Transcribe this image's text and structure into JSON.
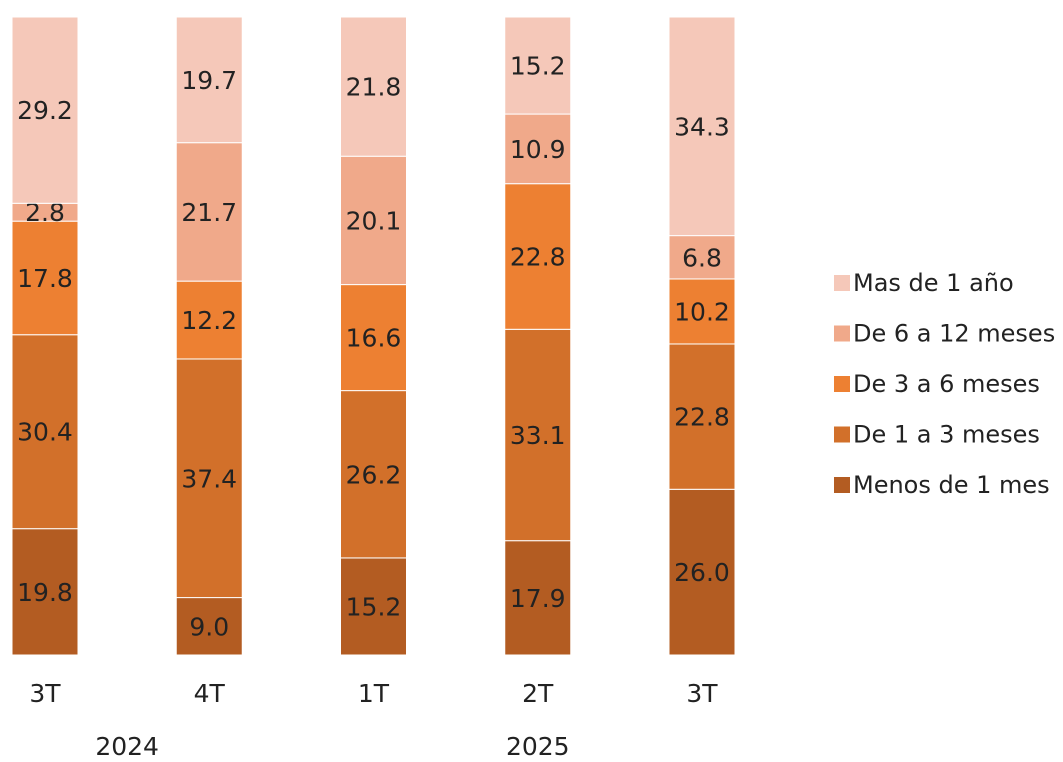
{
  "chart_data": {
    "type": "stacked_bar",
    "categories": [
      "3T",
      "4T",
      "1T",
      "2T",
      "3T"
    ],
    "groups": [
      {
        "label": "2024",
        "span": 2
      },
      {
        "label": "2025",
        "span": 3
      }
    ],
    "series": [
      {
        "name": "Menos de 1 mes",
        "color": "#b35c22",
        "values": [
          19.8,
          9.0,
          15.2,
          17.9,
          26.0
        ],
        "value_labels": [
          "19.8",
          "9.0",
          "15.2",
          "17.9",
          "26.0"
        ]
      },
      {
        "name": "De 1 a 3 meses",
        "color": "#d2702a",
        "values": [
          30.4,
          37.4,
          26.2,
          33.1,
          22.8
        ],
        "value_labels": [
          "30.4",
          "37.4",
          "26.2",
          "33.1",
          "22.8"
        ]
      },
      {
        "name": "De 3 a 6 meses",
        "color": "#ed8032",
        "values": [
          17.8,
          12.2,
          16.6,
          22.8,
          10.2
        ],
        "value_labels": [
          "17.8",
          "12.2",
          "16.6",
          "22.8",
          "10.2"
        ]
      },
      {
        "name": "De 6 a 12 meses",
        "color": "#f0a98a",
        "values": [
          2.8,
          21.7,
          20.1,
          10.9,
          6.8
        ],
        "value_labels": [
          "2.8",
          "21.7",
          "20.1",
          "10.9",
          "6.8"
        ]
      },
      {
        "name": "Mas de 1 año",
        "color": "#f5c8b9",
        "values": [
          29.2,
          19.7,
          21.8,
          15.2,
          34.3
        ],
        "value_labels": [
          "29.2",
          "19.7",
          "21.8",
          "15.2",
          "34.3"
        ]
      }
    ],
    "legend": "right"
  }
}
